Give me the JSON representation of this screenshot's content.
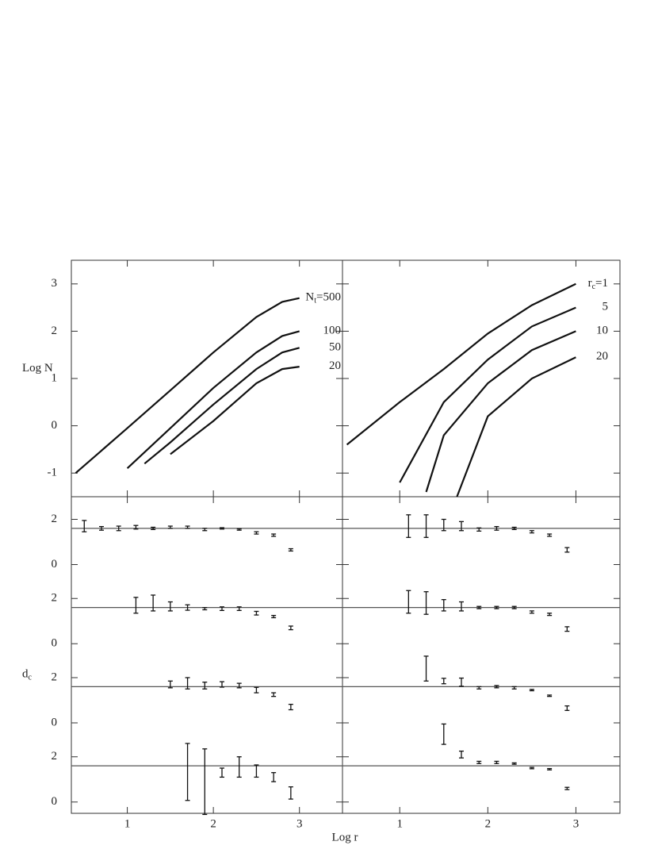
{
  "chart_data": [
    {
      "type": "line",
      "ylabel": "Log N",
      "xlim": [
        0.35,
        3.5
      ],
      "ylim": [
        -1.5,
        3.5
      ],
      "xticks": [
        1,
        2,
        3
      ],
      "yticks": [
        -1,
        0,
        1,
        2,
        3
      ],
      "show_xtick_labels": false,
      "show_ytick_labels": true,
      "label_prefix": {
        "symbol": "N",
        "sub": "t",
        "eq": "="
      },
      "series": [
        {
          "name": "500",
          "color": "#111",
          "x": [
            0.4,
            1,
            1.5,
            2,
            2.5,
            2.8,
            3.0
          ],
          "values": [
            -1.0,
            -0.05,
            0.75,
            1.55,
            2.3,
            2.62,
            2.7
          ]
        },
        {
          "name": "100",
          "color": "#111",
          "x": [
            1.0,
            1.5,
            2,
            2.5,
            2.8,
            3.0
          ],
          "values": [
            -0.9,
            -0.05,
            0.8,
            1.55,
            1.9,
            2.0
          ]
        },
        {
          "name": "50",
          "color": "#111",
          "x": [
            1.2,
            1.5,
            2,
            2.5,
            2.8,
            3.0
          ],
          "values": [
            -0.8,
            -0.35,
            0.45,
            1.2,
            1.55,
            1.65
          ]
        },
        {
          "name": "20",
          "color": "#111",
          "x": [
            1.5,
            2,
            2.5,
            2.8,
            3.0
          ],
          "values": [
            -0.6,
            0.1,
            0.9,
            1.2,
            1.25
          ]
        }
      ]
    },
    {
      "type": "line",
      "xlim": [
        0.35,
        3.5
      ],
      "ylim": [
        -1.5,
        3.5
      ],
      "xticks": [
        1,
        2,
        3
      ],
      "yticks": [
        -1,
        0,
        1,
        2,
        3
      ],
      "show_xtick_labels": false,
      "show_ytick_labels": false,
      "label_prefix": {
        "symbol": "r",
        "sub": "c",
        "eq": "="
      },
      "series": [
        {
          "name": "1",
          "color": "#111",
          "x": [
            0.4,
            1,
            1.5,
            2,
            2.5,
            3.0
          ],
          "values": [
            -0.4,
            0.5,
            1.2,
            1.95,
            2.55,
            3.0
          ]
        },
        {
          "name": "5",
          "color": "#111",
          "x": [
            1.0,
            1.5,
            2,
            2.5,
            3.0
          ],
          "values": [
            -1.2,
            0.5,
            1.4,
            2.1,
            2.5
          ]
        },
        {
          "name": "10",
          "color": "#111",
          "x": [
            1.3,
            1.5,
            2,
            2.5,
            3.0
          ],
          "values": [
            -1.4,
            -0.2,
            0.9,
            1.6,
            2.0
          ]
        },
        {
          "name": "20",
          "color": "#111",
          "x": [
            1.65,
            2,
            2.5,
            3.0
          ],
          "values": [
            -1.5,
            0.2,
            1.0,
            1.45
          ]
        }
      ]
    },
    {
      "type": "errorbar",
      "xlim": [
        0.35,
        3.5
      ],
      "ylim": [
        -0.5,
        3
      ],
      "xticks": [
        1,
        2,
        3
      ],
      "yticks": [
        0,
        2
      ],
      "show_xtick_labels": false,
      "show_ytick_labels": true,
      "hline": 1.6,
      "color": "#111",
      "x": [
        0.5,
        0.7,
        0.9,
        1.1,
        1.3,
        1.5,
        1.7,
        1.9,
        2.1,
        2.3,
        2.5,
        2.7,
        2.9
      ],
      "values": [
        1.7,
        1.6,
        1.6,
        1.65,
        1.6,
        1.65,
        1.65,
        1.55,
        1.6,
        1.55,
        1.4,
        1.3,
        0.65
      ],
      "errors": [
        0.25,
        0.08,
        0.1,
        0.08,
        0.05,
        0.05,
        0.05,
        0.05,
        0.03,
        0.03,
        0.05,
        0.05,
        0.05
      ]
    },
    {
      "type": "errorbar",
      "xlim": [
        0.35,
        3.5
      ],
      "ylim": [
        -0.5,
        3
      ],
      "xticks": [
        1,
        2,
        3
      ],
      "yticks": [
        0,
        2
      ],
      "show_xtick_labels": false,
      "show_ytick_labels": true,
      "hline": 1.6,
      "color": "#111",
      "ylabel": "d",
      "ylabel_sub": "c",
      "x": [
        1.1,
        1.3,
        1.5,
        1.7,
        1.9,
        2.1,
        2.3,
        2.5,
        2.7,
        2.9
      ],
      "values": [
        1.7,
        1.8,
        1.65,
        1.6,
        1.55,
        1.55,
        1.55,
        1.35,
        1.2,
        0.7
      ],
      "errors": [
        0.35,
        0.35,
        0.2,
        0.12,
        0.05,
        0.08,
        0.08,
        0.08,
        0.05,
        0.08
      ]
    },
    {
      "type": "errorbar",
      "xlim": [
        0.35,
        3.5
      ],
      "ylim": [
        -0.5,
        3
      ],
      "xticks": [
        1,
        2,
        3
      ],
      "yticks": [
        0,
        2
      ],
      "show_xtick_labels": false,
      "show_ytick_labels": true,
      "hline": 1.6,
      "color": "#111",
      "x": [
        1.5,
        1.7,
        1.9,
        2.1,
        2.3,
        2.5,
        2.7,
        2.9
      ],
      "values": [
        1.7,
        1.75,
        1.65,
        1.7,
        1.65,
        1.45,
        1.25,
        0.7
      ],
      "errors": [
        0.15,
        0.25,
        0.15,
        0.12,
        0.1,
        0.12,
        0.08,
        0.12
      ]
    },
    {
      "type": "errorbar",
      "xlim": [
        0.35,
        3.5
      ],
      "ylim": [
        -0.5,
        3
      ],
      "xticks": [
        1,
        2,
        3
      ],
      "yticks": [
        0,
        2
      ],
      "show_xtick_labels": true,
      "show_ytick_labels": true,
      "hline": 1.6,
      "color": "#111",
      "xlabel": "Log r",
      "x": [
        1.7,
        1.9,
        2.1,
        2.3,
        2.5,
        2.7,
        2.9
      ],
      "values": [
        1.33,
        0.9,
        1.3,
        1.55,
        1.37,
        1.1,
        0.4
      ],
      "errors": [
        1.26,
        1.45,
        0.2,
        0.45,
        0.27,
        0.2,
        0.27
      ]
    },
    {
      "type": "errorbar",
      "xlim": [
        0.35,
        3.5
      ],
      "ylim": [
        -0.5,
        3
      ],
      "xticks": [
        1,
        2,
        3
      ],
      "yticks": [
        0,
        2
      ],
      "show_xtick_labels": false,
      "show_ytick_labels": false,
      "hline": 1.6,
      "color": "#111",
      "x": [
        1.1,
        1.3,
        1.5,
        1.7,
        1.9,
        2.1,
        2.3,
        2.5,
        2.7,
        2.9
      ],
      "values": [
        1.7,
        1.7,
        1.75,
        1.7,
        1.55,
        1.6,
        1.6,
        1.45,
        1.3,
        0.65
      ],
      "errors": [
        0.5,
        0.5,
        0.25,
        0.2,
        0.07,
        0.08,
        0.05,
        0.05,
        0.05,
        0.1
      ]
    },
    {
      "type": "errorbar",
      "xlim": [
        0.35,
        3.5
      ],
      "ylim": [
        -0.5,
        3
      ],
      "xticks": [
        1,
        2,
        3
      ],
      "yticks": [
        0,
        2
      ],
      "show_xtick_labels": false,
      "show_ytick_labels": false,
      "hline": 1.6,
      "color": "#111",
      "x": [
        1.1,
        1.3,
        1.5,
        1.7,
        1.9,
        2.1,
        2.3,
        2.5,
        2.7,
        2.9
      ],
      "values": [
        1.85,
        1.8,
        1.7,
        1.65,
        1.6,
        1.6,
        1.6,
        1.4,
        1.3,
        0.65
      ],
      "errors": [
        0.5,
        0.5,
        0.25,
        0.2,
        0.05,
        0.05,
        0.05,
        0.05,
        0.05,
        0.1
      ]
    },
    {
      "type": "errorbar",
      "xlim": [
        0.35,
        3.5
      ],
      "ylim": [
        -0.5,
        3
      ],
      "xticks": [
        1,
        2,
        3
      ],
      "yticks": [
        0,
        2
      ],
      "show_xtick_labels": false,
      "show_ytick_labels": false,
      "hline": 1.6,
      "color": "#111",
      "x": [
        1.3,
        1.5,
        1.7,
        1.9,
        2.1,
        2.3,
        2.5,
        2.7,
        2.9
      ],
      "values": [
        2.4,
        1.85,
        1.8,
        1.55,
        1.6,
        1.55,
        1.45,
        1.2,
        0.65
      ],
      "errors": [
        0.55,
        0.12,
        0.18,
        0.05,
        0.05,
        0.05,
        0.03,
        0.03,
        0.1
      ]
    },
    {
      "type": "errorbar",
      "xlim": [
        0.35,
        3.5
      ],
      "ylim": [
        -0.5,
        3
      ],
      "xticks": [
        1,
        2,
        3
      ],
      "yticks": [
        0,
        2
      ],
      "show_xtick_labels": true,
      "show_ytick_labels": false,
      "hline": 1.6,
      "color": "#111",
      "x": [
        1.5,
        1.7,
        1.9,
        2.1,
        2.3,
        2.5,
        2.7,
        2.9
      ],
      "values": [
        3.0,
        2.1,
        1.75,
        1.75,
        1.7,
        1.5,
        1.45,
        0.6
      ],
      "errors": [
        0.45,
        0.15,
        0.05,
        0.05,
        0.03,
        0.03,
        0.03,
        0.05
      ]
    }
  ]
}
